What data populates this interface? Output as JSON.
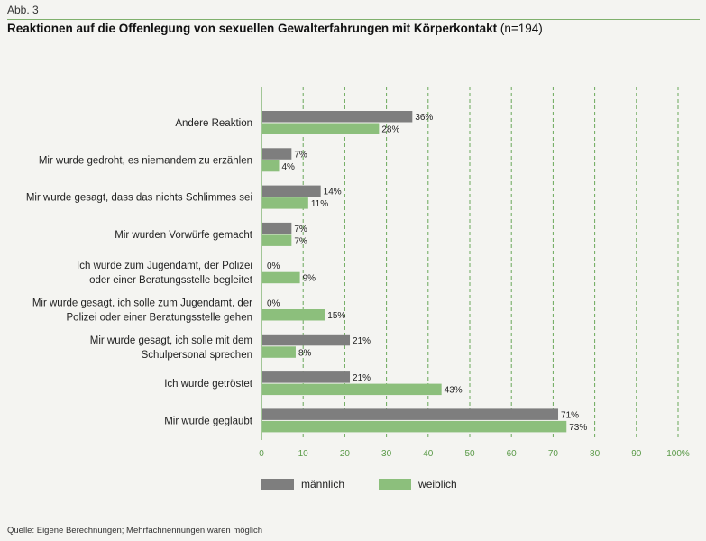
{
  "figure_label": "Abb. 3",
  "title": "Reaktionen auf die Offenlegung von sexuellen Gewalterfahrungen mit Körperkontakt",
  "title_n": "(n=194)",
  "source": "Quelle: Eigene Berechnungen; Mehrfachnennungen waren möglich",
  "colors": {
    "maennlich": "#7e7e7e",
    "weiblich": "#8cbf7c",
    "grid": "#6aa85a"
  },
  "chart_data": {
    "type": "bar",
    "orientation": "horizontal",
    "categories": [
      [
        "Andere Reaktion"
      ],
      [
        "Mir wurde gedroht, es niemandem zu erzählen"
      ],
      [
        "Mir wurde gesagt, dass das nichts Schlimmes sei"
      ],
      [
        "Mir wurden Vorwürfe gemacht"
      ],
      [
        "Ich wurde zum Jugendamt, der Polizei",
        "oder einer Beratungsstelle begleitet"
      ],
      [
        "Mir wurde gesagt, ich solle zum Jugendamt, der",
        "Polizei oder einer Beratungsstelle gehen"
      ],
      [
        "Mir wurde gesagt, ich solle mit dem",
        "Schulpersonal sprechen"
      ],
      [
        "Ich wurde getröstet"
      ],
      [
        "Mir wurde geglaubt"
      ]
    ],
    "series": [
      {
        "name": "männlich",
        "values": [
          36,
          7,
          14,
          7,
          0,
          0,
          21,
          21,
          71
        ]
      },
      {
        "name": "weiblich",
        "values": [
          28,
          4,
          11,
          7,
          9,
          15,
          8,
          43,
          73
        ]
      }
    ],
    "value_suffix": "%",
    "xlim": [
      0,
      100
    ],
    "xticks": [
      0,
      10,
      20,
      30,
      40,
      50,
      60,
      70,
      80,
      90,
      100
    ],
    "xtick_labels": [
      "0",
      "10",
      "20",
      "30",
      "40",
      "50",
      "60",
      "70",
      "80",
      "90",
      "100%"
    ],
    "grid": true,
    "legend_position": "bottom"
  }
}
